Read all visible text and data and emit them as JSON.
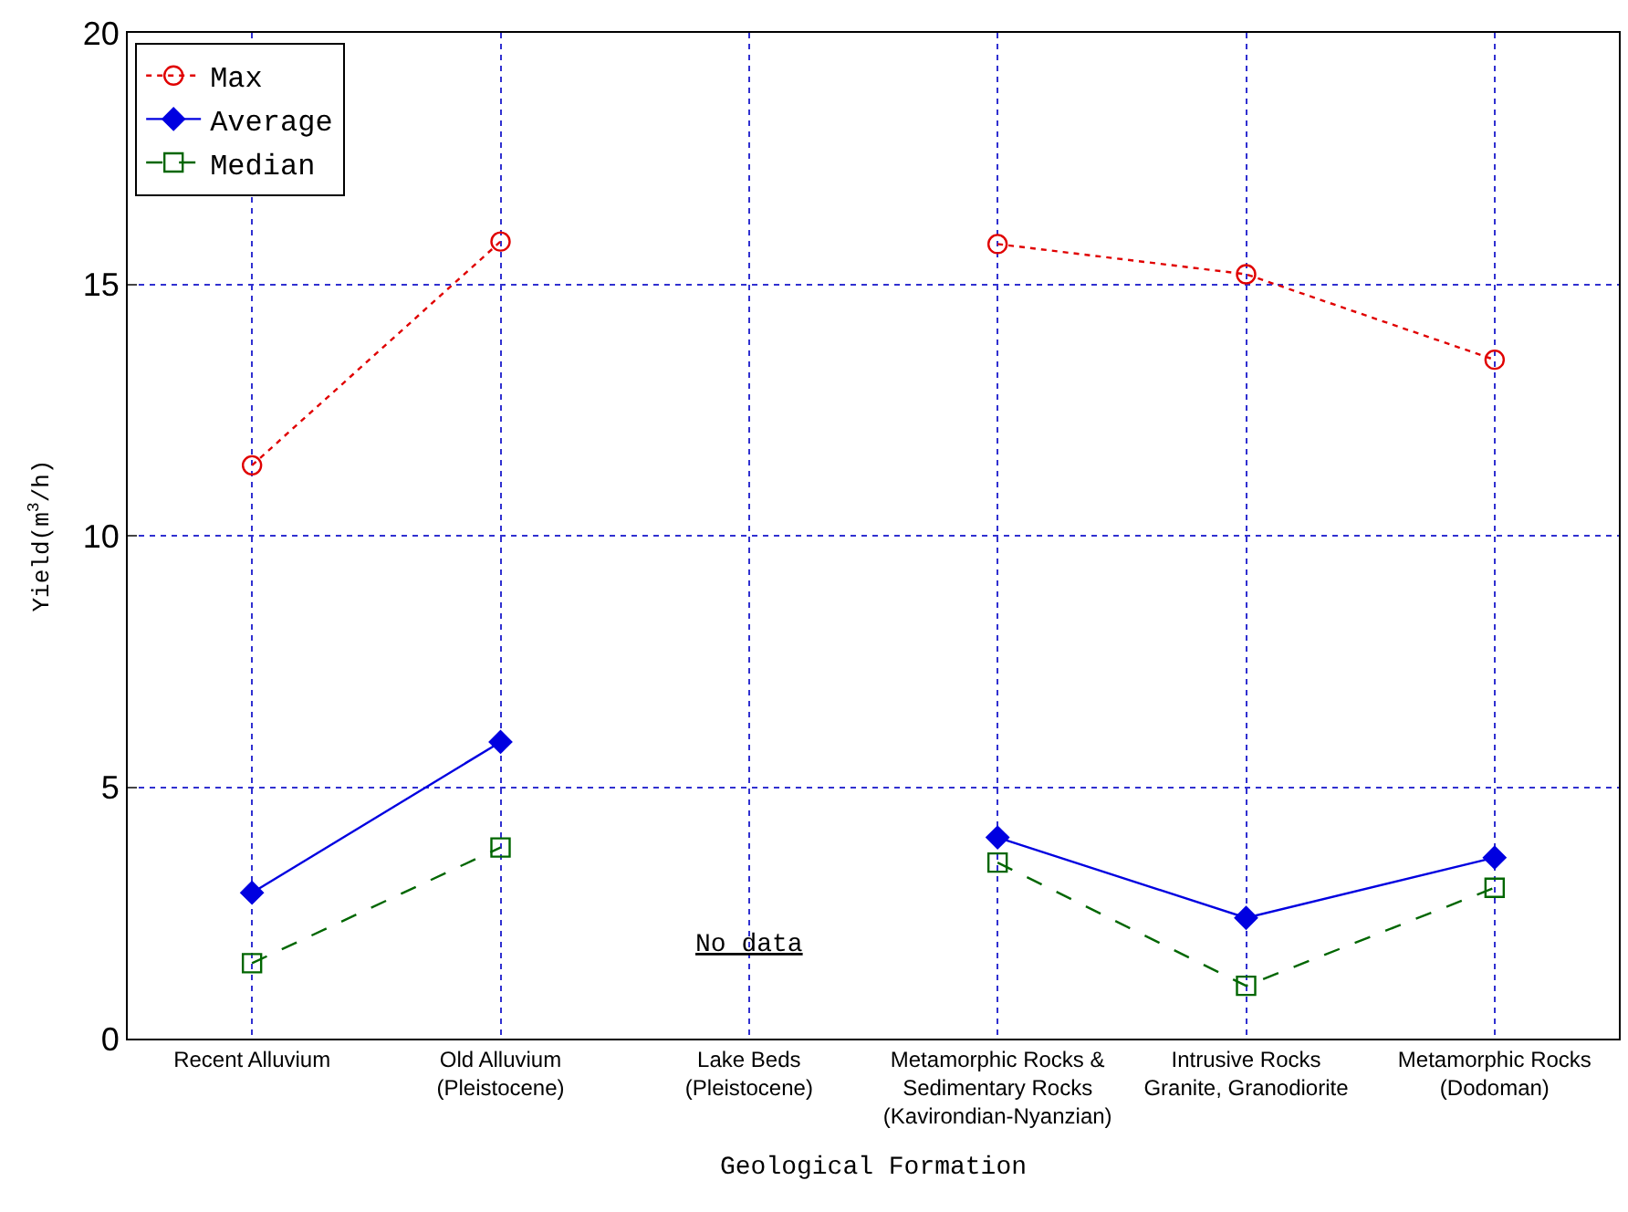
{
  "chart_data": {
    "type": "line",
    "xlabel": "Geological Formation",
    "ylabel": "Yield(m$^{3}$/h)",
    "categories": [
      "Recent Alluvium",
      "Old Alluvium\n(Pleistocene)",
      "Lake Beds\n(Pleistocene)",
      "Metamorphic Rocks &\nSedimentary Rocks\n(Kavirondian-Nyanzian)",
      "Intrusive Rocks\nGranite, Granodiorite",
      "Metamorphic Rocks\n(Dodoman)"
    ],
    "series": [
      {
        "name": "Max",
        "color": "#e00000",
        "values": [
          11.4,
          15.85,
          null,
          15.8,
          15.2,
          13.5
        ],
        "marker": "circle",
        "line_style": "dotted"
      },
      {
        "name": "Average",
        "color": "#0000e0",
        "values": [
          2.9,
          5.9,
          null,
          4.0,
          2.4,
          3.6
        ],
        "marker": "diamond",
        "line_style": "solid"
      },
      {
        "name": "Median",
        "color": "#006600",
        "values": [
          1.5,
          3.8,
          null,
          3.5,
          1.05,
          3.0
        ],
        "marker": "square",
        "line_style": "dashed"
      }
    ],
    "ylim": [
      0,
      20
    ],
    "yticks": [
      0,
      5,
      10,
      15,
      20
    ],
    "grid": true,
    "legend": "top left",
    "annotations": [
      "No data"
    ]
  }
}
